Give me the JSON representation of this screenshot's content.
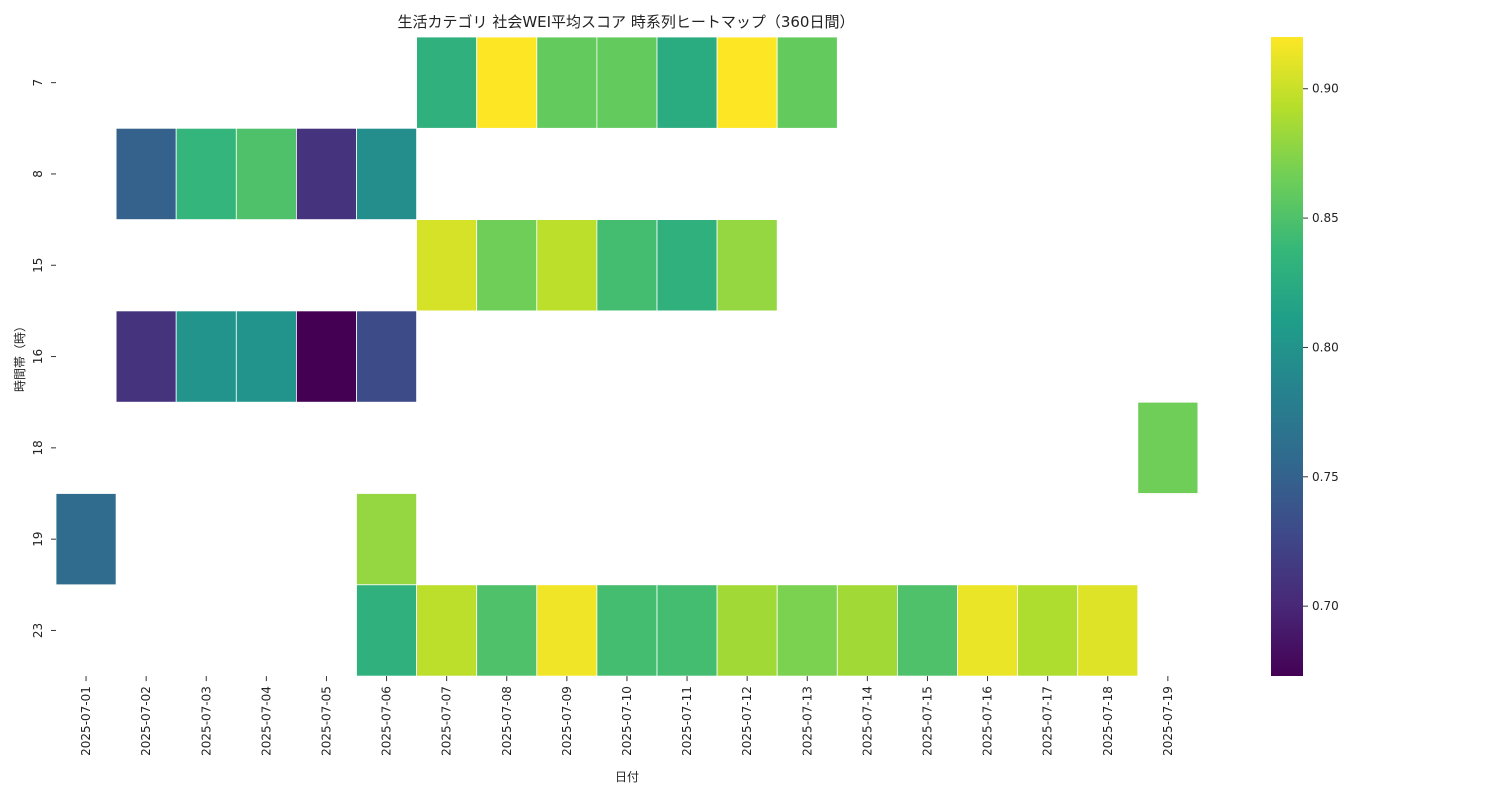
{
  "chart_data": {
    "type": "heatmap",
    "title": "生活カテゴリ 社会WEI平均スコア 時系列ヒートマップ（360日間）",
    "xlabel": "日付",
    "ylabel": "時間帯（時）",
    "x": [
      "2025-07-01",
      "2025-07-02",
      "2025-07-03",
      "2025-07-04",
      "2025-07-05",
      "2025-07-06",
      "2025-07-07",
      "2025-07-08",
      "2025-07-09",
      "2025-07-10",
      "2025-07-11",
      "2025-07-12",
      "2025-07-13",
      "2025-07-14",
      "2025-07-15",
      "2025-07-16",
      "2025-07-17",
      "2025-07-18",
      "2025-07-19"
    ],
    "y": [
      "7",
      "8",
      "15",
      "16",
      "18",
      "19",
      "23"
    ],
    "values": [
      [
        null,
        null,
        null,
        null,
        null,
        null,
        0.83,
        0.92,
        0.86,
        0.86,
        0.825,
        0.92,
        0.86,
        null,
        null,
        null,
        null,
        null,
        null
      ],
      [
        null,
        0.75,
        0.835,
        0.85,
        0.71,
        0.795,
        null,
        null,
        null,
        null,
        null,
        null,
        null,
        null,
        null,
        null,
        null,
        null,
        null
      ],
      [
        null,
        null,
        null,
        null,
        null,
        null,
        0.905,
        0.865,
        0.895,
        0.845,
        0.83,
        0.88,
        null,
        null,
        null,
        null,
        null,
        null,
        null
      ],
      [
        null,
        0.71,
        0.8,
        0.8,
        0.673,
        0.73,
        null,
        null,
        null,
        null,
        null,
        null,
        null,
        null,
        null,
        null,
        null,
        null,
        null
      ],
      [
        null,
        null,
        null,
        null,
        null,
        null,
        null,
        null,
        null,
        null,
        null,
        null,
        null,
        null,
        null,
        null,
        null,
        null,
        0.865
      ],
      [
        0.76,
        null,
        null,
        null,
        null,
        0.88,
        null,
        null,
        null,
        null,
        null,
        null,
        null,
        null,
        null,
        null,
        null,
        null,
        null
      ],
      [
        null,
        null,
        null,
        null,
        null,
        0.83,
        0.895,
        0.85,
        0.915,
        0.845,
        0.845,
        0.885,
        0.87,
        0.885,
        0.85,
        0.913,
        0.89,
        0.908,
        null
      ]
    ],
    "colorbar": {
      "colormap": "viridis",
      "vmin": 0.673,
      "vmax": 0.92,
      "ticks": [
        "0.70",
        "0.75",
        "0.80",
        "0.85",
        "0.90"
      ]
    },
    "grid": false
  }
}
